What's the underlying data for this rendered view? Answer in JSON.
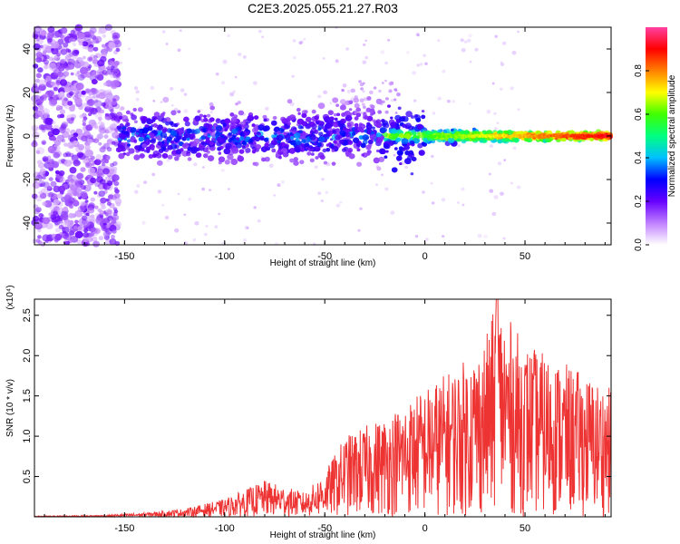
{
  "title": "C2E3.2025.055.21.27.R03",
  "chart_data": [
    {
      "type": "heatmap",
      "xlabel": "Height of straight line (km)",
      "ylabel": "Frequency (Hz)",
      "xlim": [
        -195,
        93
      ],
      "ylim": [
        -50,
        50
      ],
      "x_ticks": [
        -150,
        -100,
        -50,
        0,
        50
      ],
      "y_ticks": [
        -40,
        -20,
        0,
        20,
        40
      ],
      "grid": false,
      "colorbar": {
        "label": "Normalized spectral amplitude",
        "range": [
          0.0,
          1.0
        ],
        "ticks": [
          "0.0",
          "0.2",
          "0.4",
          "0.6",
          "0.8"
        ],
        "colormap": [
          "#ffffff",
          "#c080ff",
          "#6600ff",
          "#0000ff",
          "#00c0ff",
          "#00ff80",
          "#40ff00",
          "#ffff00",
          "#ff8000",
          "#ff0000",
          "#ff40a0"
        ]
      }
    },
    {
      "type": "line",
      "xlabel": "Height of straight line (km)",
      "ylabel": "SNR (10 * v/v)",
      "y_multiplier": "(x10⁴)",
      "xlim": [
        -195,
        93
      ],
      "ylim": [
        0,
        2.7
      ],
      "x_ticks": [
        -150,
        -100,
        -50,
        0,
        50
      ],
      "y_ticks": [
        "0.5",
        "1.0",
        "1.5",
        "2.0",
        "2.5"
      ],
      "line_color": "#ee3333",
      "envelope": {
        "x": [
          -195,
          -160,
          -140,
          -120,
          -100,
          -80,
          -60,
          -50,
          -40,
          -20,
          0,
          20,
          30,
          36,
          50,
          70,
          93
        ],
        "y": [
          0.01,
          0.02,
          0.05,
          0.1,
          0.22,
          0.45,
          0.3,
          0.55,
          1.0,
          1.25,
          1.6,
          1.95,
          2.2,
          2.7,
          2.15,
          1.9,
          1.6
        ]
      }
    }
  ]
}
